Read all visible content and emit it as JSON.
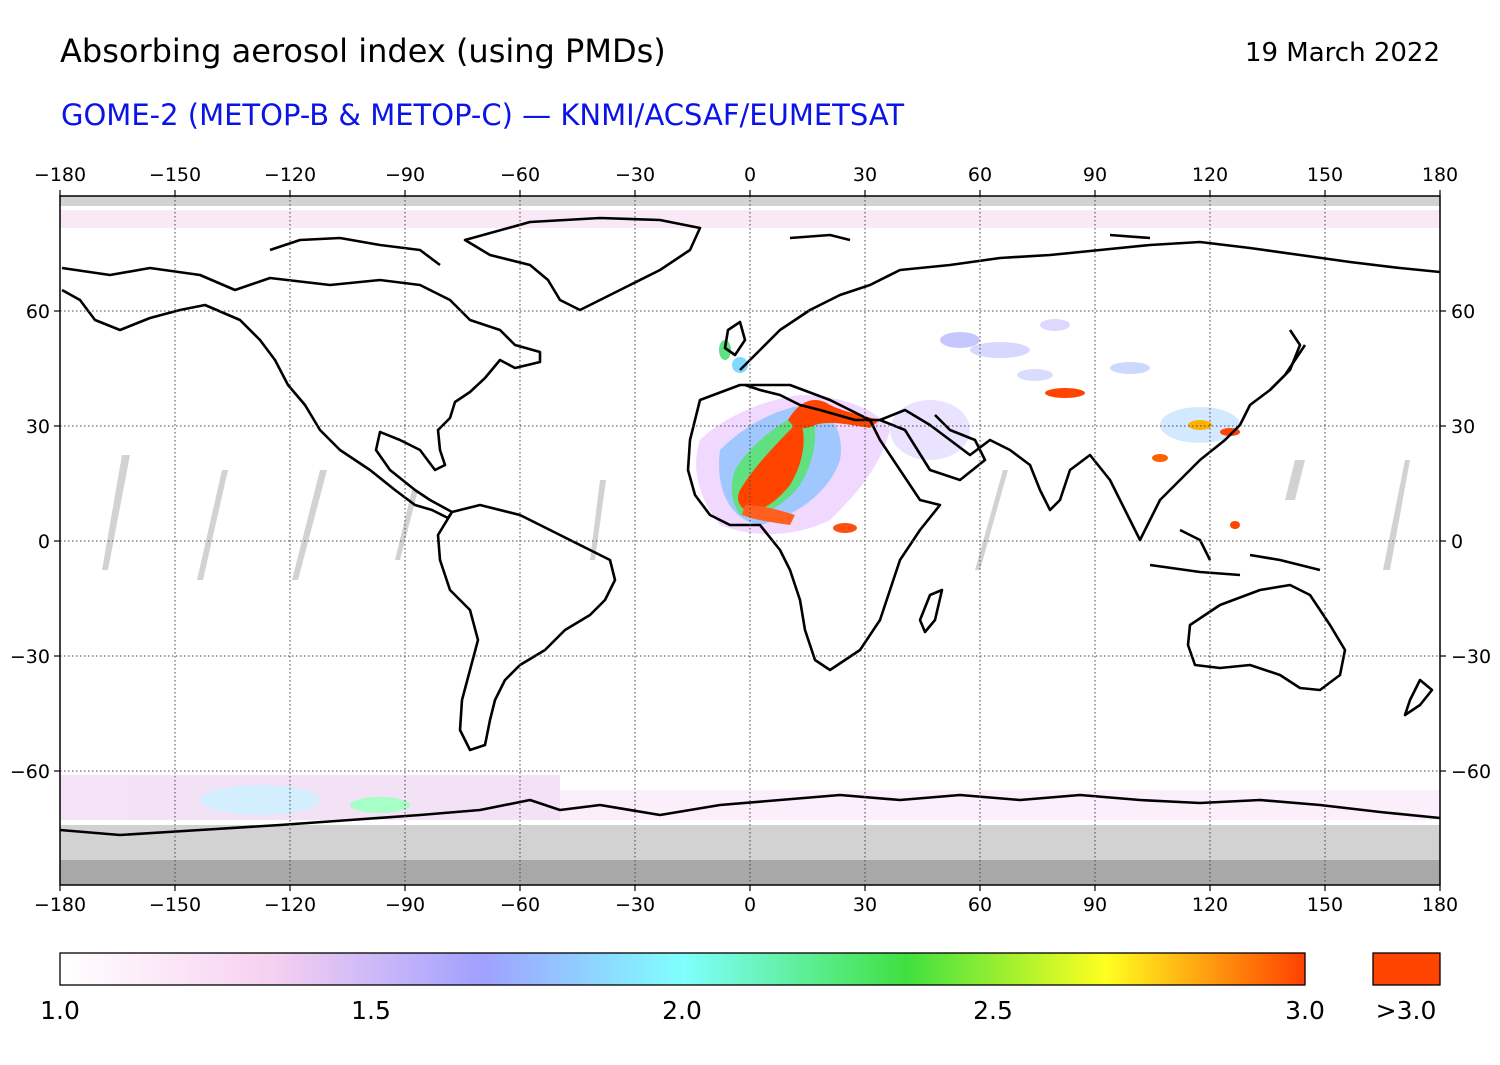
{
  "header": {
    "title": "Absorbing aerosol index (using PMDs)",
    "date": "19 March 2022",
    "subtitle": "GOME-2 (METOP-B & METOP-C) — KNMI/ACSAF/EUMETSAT"
  },
  "map": {
    "projection": "equirectangular",
    "lon_range": [
      -180,
      180
    ],
    "lat_range": [
      -90,
      90
    ],
    "lon_ticks": [
      "−180",
      "−150",
      "−120",
      "−90",
      "−60",
      "−30",
      "0",
      "30",
      "60",
      "90",
      "120",
      "150",
      "180"
    ],
    "lat_ticks": [
      "60",
      "30",
      "0",
      "−30",
      "−60"
    ],
    "grid": "dotted",
    "no_data_color": "#d2d2d2",
    "polar_mask_color": "#a8a8a8",
    "coastline_color": "#000000",
    "aerosol_plumes": [
      {
        "region": "Sahara / West Africa dust",
        "value": ">3.0"
      },
      {
        "region": "Eastern Mediterranean / Libya",
        "value": ">3.0"
      },
      {
        "region": "Central Asia",
        "value": ">3.0"
      },
      {
        "region": "East China / Korea",
        "value": "3.0"
      }
    ]
  },
  "colorbar": {
    "min": 1.0,
    "max": 3.0,
    "labels": [
      "1.0",
      "1.5",
      "2.0",
      "2.5",
      "3.0"
    ],
    "overflow_label": ">3.0",
    "overflow_color": "#ff4400",
    "stops": [
      "#ffffff",
      "#f6d0f0",
      "#a0a0ff",
      "#80ffff",
      "#40e040",
      "#ffff20",
      "#ff4000"
    ]
  }
}
